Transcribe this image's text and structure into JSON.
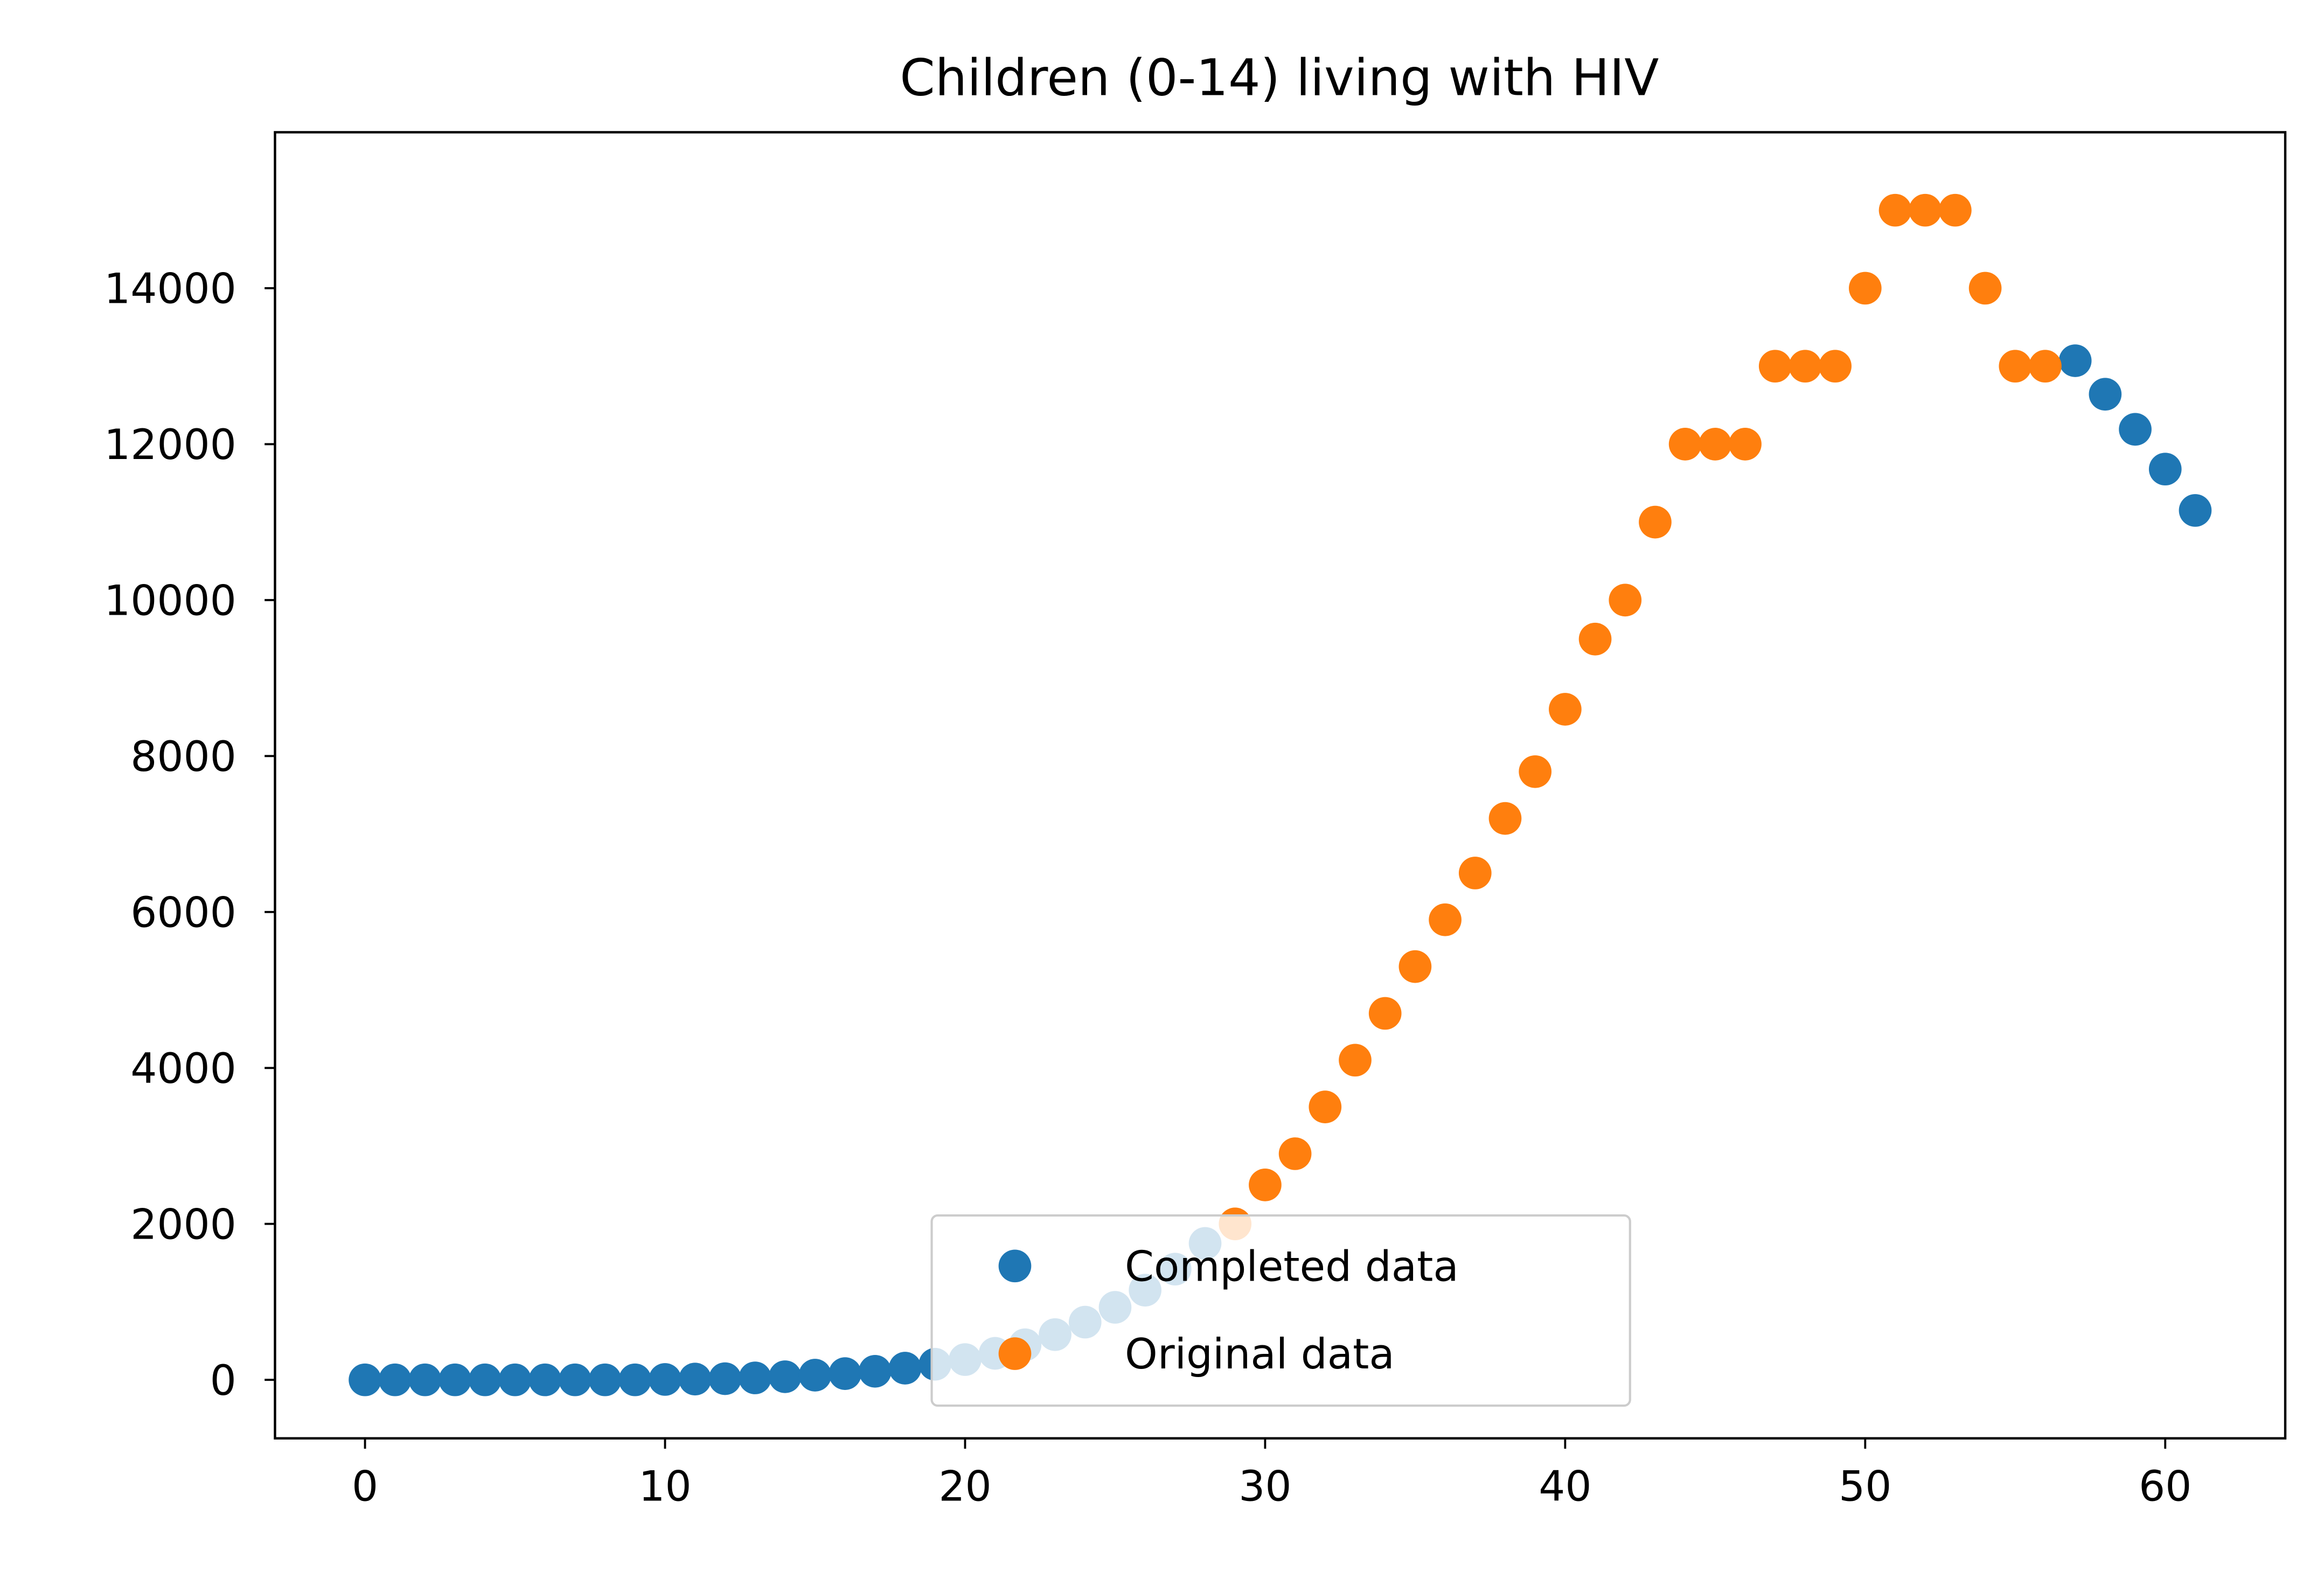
{
  "chart_data": {
    "type": "scatter",
    "title": "Children (0-14) living with HIV",
    "xlabel": "",
    "ylabel": "",
    "xlim": [
      -3,
      64
    ],
    "ylim": [
      -750,
      16000
    ],
    "x_ticks": [
      0,
      10,
      20,
      30,
      40,
      50,
      60
    ],
    "y_ticks": [
      0,
      2000,
      4000,
      6000,
      8000,
      10000,
      12000,
      14000
    ],
    "grid": false,
    "legend_position": "lower center",
    "series": [
      {
        "name": "Completed data",
        "color": "#1f77b4",
        "x": [
          0,
          1,
          2,
          3,
          4,
          5,
          6,
          7,
          8,
          9,
          10,
          11,
          12,
          13,
          14,
          15,
          16,
          17,
          18,
          19,
          20,
          21,
          22,
          23,
          24,
          25,
          26,
          27,
          28,
          57,
          58,
          59,
          60,
          61
        ],
        "y": [
          0,
          0,
          0,
          0,
          0,
          0,
          0,
          0,
          0,
          0,
          5,
          10,
          15,
          25,
          40,
          60,
          80,
          110,
          150,
          200,
          260,
          340,
          450,
          580,
          740,
          930,
          1150,
          1420,
          1750,
          13070,
          12640,
          12190,
          11680,
          11150
        ]
      },
      {
        "name": "Original data",
        "color": "#ff7f0e",
        "x": [
          29,
          30,
          31,
          32,
          33,
          34,
          35,
          36,
          37,
          38,
          39,
          40,
          41,
          42,
          43,
          44,
          45,
          46,
          47,
          48,
          49,
          50,
          51,
          52,
          53,
          54,
          55,
          56
        ],
        "y": [
          2000,
          2500,
          2900,
          3500,
          4100,
          4700,
          5300,
          5900,
          6500,
          7200,
          7800,
          8600,
          9500,
          10000,
          11000,
          12000,
          12000,
          12000,
          13000,
          13000,
          13000,
          14000,
          15000,
          15000,
          15000,
          14000,
          13000,
          13000
        ]
      }
    ]
  }
}
